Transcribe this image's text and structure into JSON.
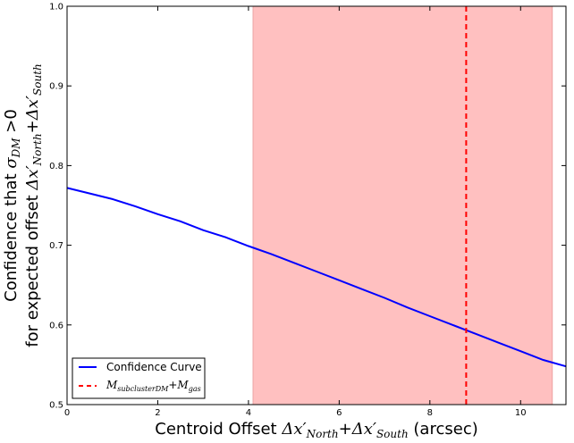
{
  "chart_data": {
    "type": "line",
    "title": "",
    "xlabel": {
      "prefix": "Centroid Offset ",
      "term1": "Δx′",
      "sub1": "North",
      "plus": "+",
      "term2": "Δx′",
      "sub2": "South",
      "suffix": " (arcsec)"
    },
    "ylabel": {
      "line1_prefix": "Confidence that ",
      "sigma": "σ",
      "sigma_sub": "DM",
      "gt": " >0",
      "line2_prefix": "for expected offset ",
      "term1": "Δx′",
      "sub1": "North",
      "plus": "+",
      "term2": "Δx′",
      "sub2": "South"
    },
    "xlim": [
      0,
      11
    ],
    "ylim": [
      0.5,
      1.0
    ],
    "xticks": [
      "0",
      "2",
      "4",
      "6",
      "8",
      "10"
    ],
    "xtick_values": [
      0,
      2,
      4,
      6,
      8,
      10
    ],
    "yticks": [
      "0.5",
      "0.6",
      "0.7",
      "0.8",
      "0.9",
      "1.0"
    ],
    "ytick_values": [
      0.5,
      0.6,
      0.7,
      0.8,
      0.9,
      1.0
    ],
    "grid": false,
    "legend_placement": "lower-left",
    "shaded_region": {
      "x": [
        4.1,
        10.7
      ],
      "color": "#ffc0c0"
    },
    "series": [
      {
        "name": "Confidence Curve",
        "color": "#0000ff",
        "style": "solid",
        "x": [
          0,
          0.5,
          1,
          1.5,
          2,
          2.5,
          3,
          3.5,
          4,
          4.5,
          5,
          5.5,
          6,
          6.5,
          7,
          7.5,
          8,
          8.5,
          9,
          9.5,
          10,
          10.5,
          11
        ],
        "y": [
          0.772,
          0.765,
          0.758,
          0.749,
          0.739,
          0.73,
          0.719,
          0.71,
          0.699,
          0.689,
          0.678,
          0.667,
          0.656,
          0.645,
          0.634,
          0.622,
          0.611,
          0.6,
          0.589,
          0.578,
          0.567,
          0.556,
          0.548
        ]
      },
      {
        "name_main": "M",
        "name_sub1": "subclusterDM",
        "name_plus": "+M",
        "name_sub2": "gas",
        "color": "#ff0000",
        "style": "dashed",
        "x_vertical": 8.8
      }
    ]
  }
}
